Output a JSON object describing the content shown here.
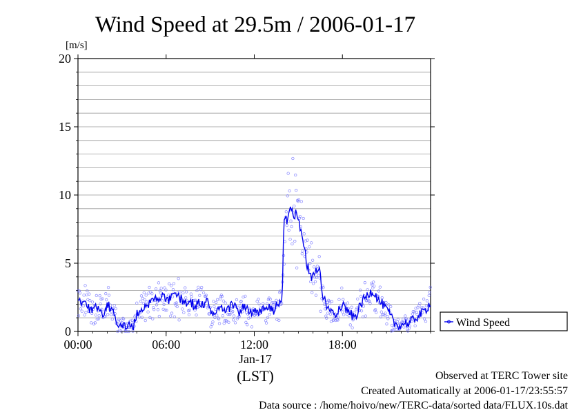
{
  "chart_data": {
    "type": "scatter",
    "title": "Wind Speed at 29.5m / 2006-01-17",
    "ylabel": "[m/s]",
    "xlabel": "(LST)",
    "date_label": "Jan-17",
    "ylim": [
      0,
      20
    ],
    "xlim": [
      0,
      24
    ],
    "y_ticks": [
      "0",
      "5",
      "10",
      "15",
      "20"
    ],
    "x_ticks": [
      {
        "value": 0,
        "label": "00:00"
      },
      {
        "value": 6,
        "label": "06:00"
      },
      {
        "value": 12,
        "label": "12:00"
      },
      {
        "value": 18,
        "label": "18:00"
      }
    ],
    "grid": true,
    "legend_position": "right",
    "series": [
      {
        "name": "Wind Speed",
        "color": "#0000ee",
        "x": [
          0.0,
          0.25,
          0.5,
          0.75,
          1.0,
          1.25,
          1.5,
          1.75,
          2.0,
          2.25,
          2.5,
          2.75,
          3.0,
          3.25,
          3.5,
          3.75,
          4.0,
          4.25,
          4.5,
          4.75,
          5.0,
          5.25,
          5.5,
          5.75,
          6.0,
          6.25,
          6.5,
          6.75,
          7.0,
          7.25,
          7.5,
          7.75,
          8.0,
          8.25,
          8.5,
          8.75,
          9.0,
          9.25,
          9.5,
          9.75,
          10.0,
          10.25,
          10.5,
          10.75,
          11.0,
          11.25,
          11.5,
          11.75,
          12.0,
          12.25,
          12.5,
          12.75,
          13.0,
          13.25,
          13.5,
          13.75,
          13.9,
          14.0,
          14.1,
          14.25,
          14.4,
          14.5,
          14.65,
          14.75,
          14.9,
          15.0,
          15.1,
          15.25,
          15.4,
          15.5,
          15.6,
          15.75,
          15.9,
          16.0,
          16.1,
          16.25,
          16.4,
          16.5,
          16.6,
          16.75,
          16.9,
          17.0,
          17.25,
          17.5,
          17.75,
          18.0,
          18.25,
          18.5,
          18.75,
          19.0,
          19.25,
          19.5,
          19.75,
          20.0,
          20.25,
          20.5,
          20.75,
          21.0,
          21.25,
          21.5,
          21.75,
          22.0,
          22.25,
          22.5,
          22.75,
          23.0,
          23.25,
          23.5,
          23.75,
          24.0
        ],
        "y": [
          2.4,
          2.0,
          2.2,
          1.7,
          1.5,
          1.9,
          1.6,
          1.3,
          2.0,
          1.7,
          1.1,
          0.6,
          0.5,
          0.3,
          0.5,
          0.3,
          1.2,
          1.6,
          1.8,
          2.0,
          2.2,
          2.4,
          2.6,
          2.5,
          2.4,
          2.3,
          2.6,
          2.7,
          2.4,
          2.2,
          2.0,
          2.1,
          1.8,
          2.2,
          1.9,
          2.3,
          1.6,
          1.2,
          1.4,
          1.8,
          1.3,
          1.6,
          2.1,
          1.7,
          1.4,
          1.9,
          1.6,
          1.3,
          1.4,
          1.3,
          1.6,
          1.7,
          1.8,
          1.4,
          1.9,
          2.0,
          2.4,
          7.5,
          8.5,
          8.0,
          9.0,
          9.2,
          8.7,
          8.3,
          8.9,
          8.0,
          7.6,
          6.8,
          6.0,
          5.5,
          4.8,
          4.5,
          4.0,
          4.2,
          4.5,
          4.3,
          4.6,
          4.0,
          3.0,
          2.4,
          2.0,
          1.6,
          1.5,
          1.3,
          1.7,
          2.0,
          1.6,
          1.4,
          1.0,
          1.3,
          2.0,
          2.4,
          2.7,
          3.0,
          2.7,
          2.2,
          2.0,
          1.6,
          1.2,
          0.6,
          0.5,
          0.4,
          0.7,
          0.5,
          0.8,
          1.0,
          1.2,
          1.4,
          1.7,
          2.2
        ]
      }
    ]
  },
  "footer": {
    "observed": "Observed at TERC Tower site",
    "created": "Created Automatically at 2006-01-17/23:55:57",
    "source": "Data source : /home/hoivo/new/TERC-data/sorted  data/FLUX.10s.dat"
  }
}
